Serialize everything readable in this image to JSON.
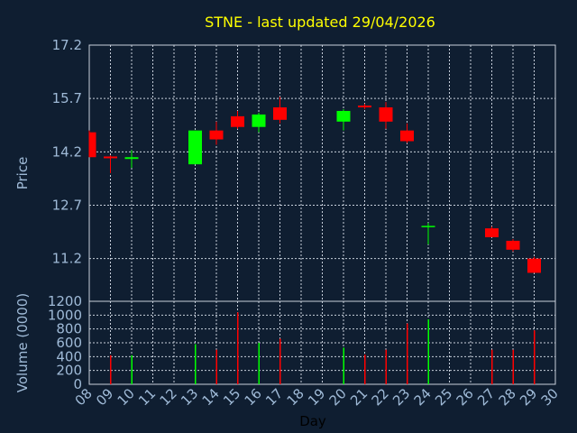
{
  "chart_data": [
    {
      "type": "candlestick",
      "title": "STNE - last updated 29/04/2026",
      "xlabel": "Day",
      "ylabel": "Price",
      "x_ticks": [
        "08",
        "09",
        "10",
        "11",
        "12",
        "13",
        "14",
        "15",
        "16",
        "17",
        "18",
        "19",
        "20",
        "21",
        "22",
        "23",
        "24",
        "25",
        "26",
        "27",
        "28",
        "29",
        "30"
      ],
      "y_ticks": [
        "17.2",
        "15.7",
        "14.2",
        "12.7",
        "11.2"
      ],
      "ylim": [
        10.0,
        17.2
      ],
      "grid": true,
      "candles": [
        {
          "day": "08",
          "open": 14.75,
          "high": 14.8,
          "low": 14.05,
          "close": 14.05
        },
        {
          "day": "09",
          "open": 14.07,
          "high": 14.1,
          "low": 13.6,
          "close": 14.02
        },
        {
          "day": "10",
          "open": 14.0,
          "high": 14.25,
          "low": 13.75,
          "close": 14.05
        },
        {
          "day": "13",
          "open": 13.85,
          "high": 14.8,
          "low": 13.85,
          "close": 14.8
        },
        {
          "day": "14",
          "open": 14.8,
          "high": 15.05,
          "low": 14.4,
          "close": 14.55
        },
        {
          "day": "15",
          "open": 15.2,
          "high": 15.35,
          "low": 14.85,
          "close": 14.9
        },
        {
          "day": "16",
          "open": 14.9,
          "high": 15.3,
          "low": 14.75,
          "close": 15.25
        },
        {
          "day": "17",
          "open": 15.45,
          "high": 15.75,
          "low": 15.0,
          "close": 15.1
        },
        {
          "day": "20",
          "open": 15.05,
          "high": 15.4,
          "low": 14.8,
          "close": 15.35
        },
        {
          "day": "21",
          "open": 15.5,
          "high": 15.55,
          "low": 15.4,
          "close": 15.45
        },
        {
          "day": "22",
          "open": 15.45,
          "high": 15.6,
          "low": 14.85,
          "close": 15.05
        },
        {
          "day": "23",
          "open": 14.8,
          "high": 15.0,
          "low": 14.45,
          "close": 14.5
        },
        {
          "day": "24",
          "open": 12.1,
          "high": 12.2,
          "low": 11.6,
          "close": 12.12
        },
        {
          "day": "27",
          "open": 12.05,
          "high": 12.1,
          "low": 11.8,
          "close": 11.8
        },
        {
          "day": "28",
          "open": 11.7,
          "high": 11.75,
          "low": 11.4,
          "close": 11.45
        },
        {
          "day": "29",
          "open": 11.2,
          "high": 11.25,
          "low": 10.8,
          "close": 10.8
        }
      ],
      "colors": {
        "up": "#00ff00",
        "down": "#ff0000",
        "background": "#0f1e31",
        "grid": "#c8d0dc",
        "text": "#9fbad7"
      }
    },
    {
      "type": "bar",
      "xlabel": "Day",
      "ylabel": "Volume (0000)",
      "y_ticks": [
        "1200",
        "1000",
        "800",
        "600",
        "400",
        "200",
        "0"
      ],
      "ylim": [
        0,
        1200
      ],
      "grid": true,
      "bars": [
        {
          "day": "09",
          "value": 420,
          "color": "#ff0000"
        },
        {
          "day": "10",
          "value": 420,
          "color": "#00ff00"
        },
        {
          "day": "13",
          "value": 580,
          "color": "#00ff00"
        },
        {
          "day": "14",
          "value": 500,
          "color": "#ff0000"
        },
        {
          "day": "15",
          "value": 1040,
          "color": "#ff0000"
        },
        {
          "day": "16",
          "value": 600,
          "color": "#00ff00"
        },
        {
          "day": "17",
          "value": 660,
          "color": "#ff0000"
        },
        {
          "day": "20",
          "value": 530,
          "color": "#00ff00"
        },
        {
          "day": "21",
          "value": 430,
          "color": "#ff0000"
        },
        {
          "day": "22",
          "value": 500,
          "color": "#ff0000"
        },
        {
          "day": "23",
          "value": 880,
          "color": "#ff0000"
        },
        {
          "day": "24",
          "value": 940,
          "color": "#00ff00"
        },
        {
          "day": "27",
          "value": 500,
          "color": "#ff0000"
        },
        {
          "day": "28",
          "value": 500,
          "color": "#ff0000"
        },
        {
          "day": "29",
          "value": 780,
          "color": "#ff0000"
        }
      ]
    }
  ]
}
